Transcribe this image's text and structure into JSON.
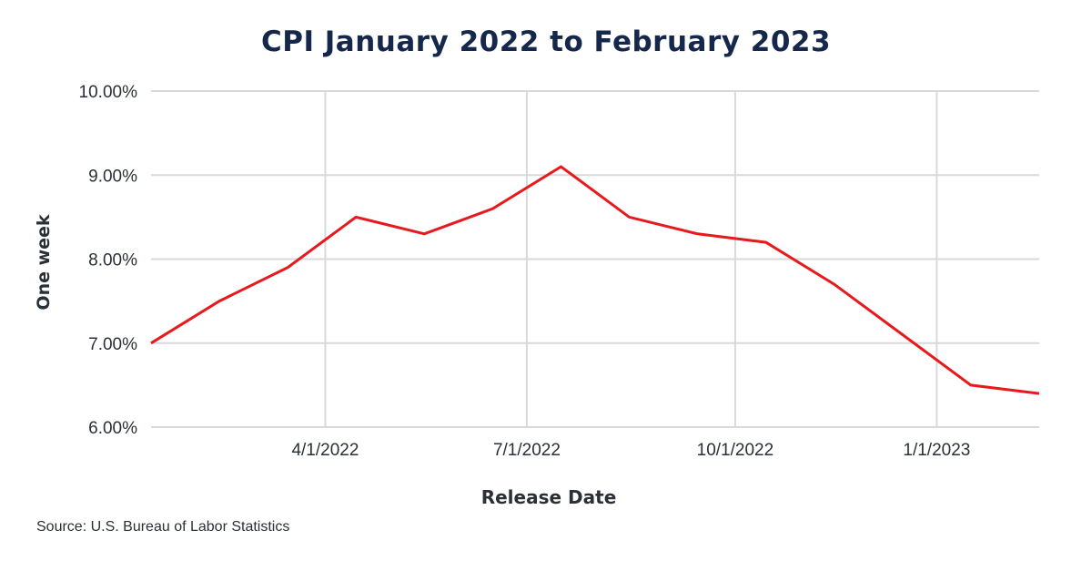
{
  "chart_data": {
    "type": "line",
    "title": "CPI January 2022 to February 2023",
    "xlabel": "Release Date",
    "ylabel": "One week",
    "ylim": [
      6.0,
      10.0
    ],
    "y_ticks": [
      "10.00%",
      "9.00%",
      "8.00%",
      "7.00%",
      "6.00%"
    ],
    "x_ticks": [
      "4/1/2022",
      "7/1/2022",
      "10/1/2022",
      "1/1/2023"
    ],
    "grid": true,
    "legend": null,
    "x": [
      "2022-01",
      "2022-02",
      "2022-03",
      "2022-04",
      "2022-05",
      "2022-06",
      "2022-07",
      "2022-08",
      "2022-09",
      "2022-10",
      "2022-11",
      "2022-12",
      "2023-01",
      "2023-02"
    ],
    "series": [
      {
        "name": "CPI",
        "color": "#e8191c",
        "values": [
          7.0,
          7.5,
          7.9,
          8.5,
          8.3,
          8.6,
          9.1,
          8.5,
          8.3,
          8.2,
          7.7,
          7.1,
          6.5,
          6.4
        ]
      }
    ],
    "source": "Source: U.S. Bureau of Labor Statistics"
  },
  "colors": {
    "title": "#15284b",
    "line": "#e8191c",
    "grid": "#d9d9d9",
    "text": "#2b2f36"
  }
}
